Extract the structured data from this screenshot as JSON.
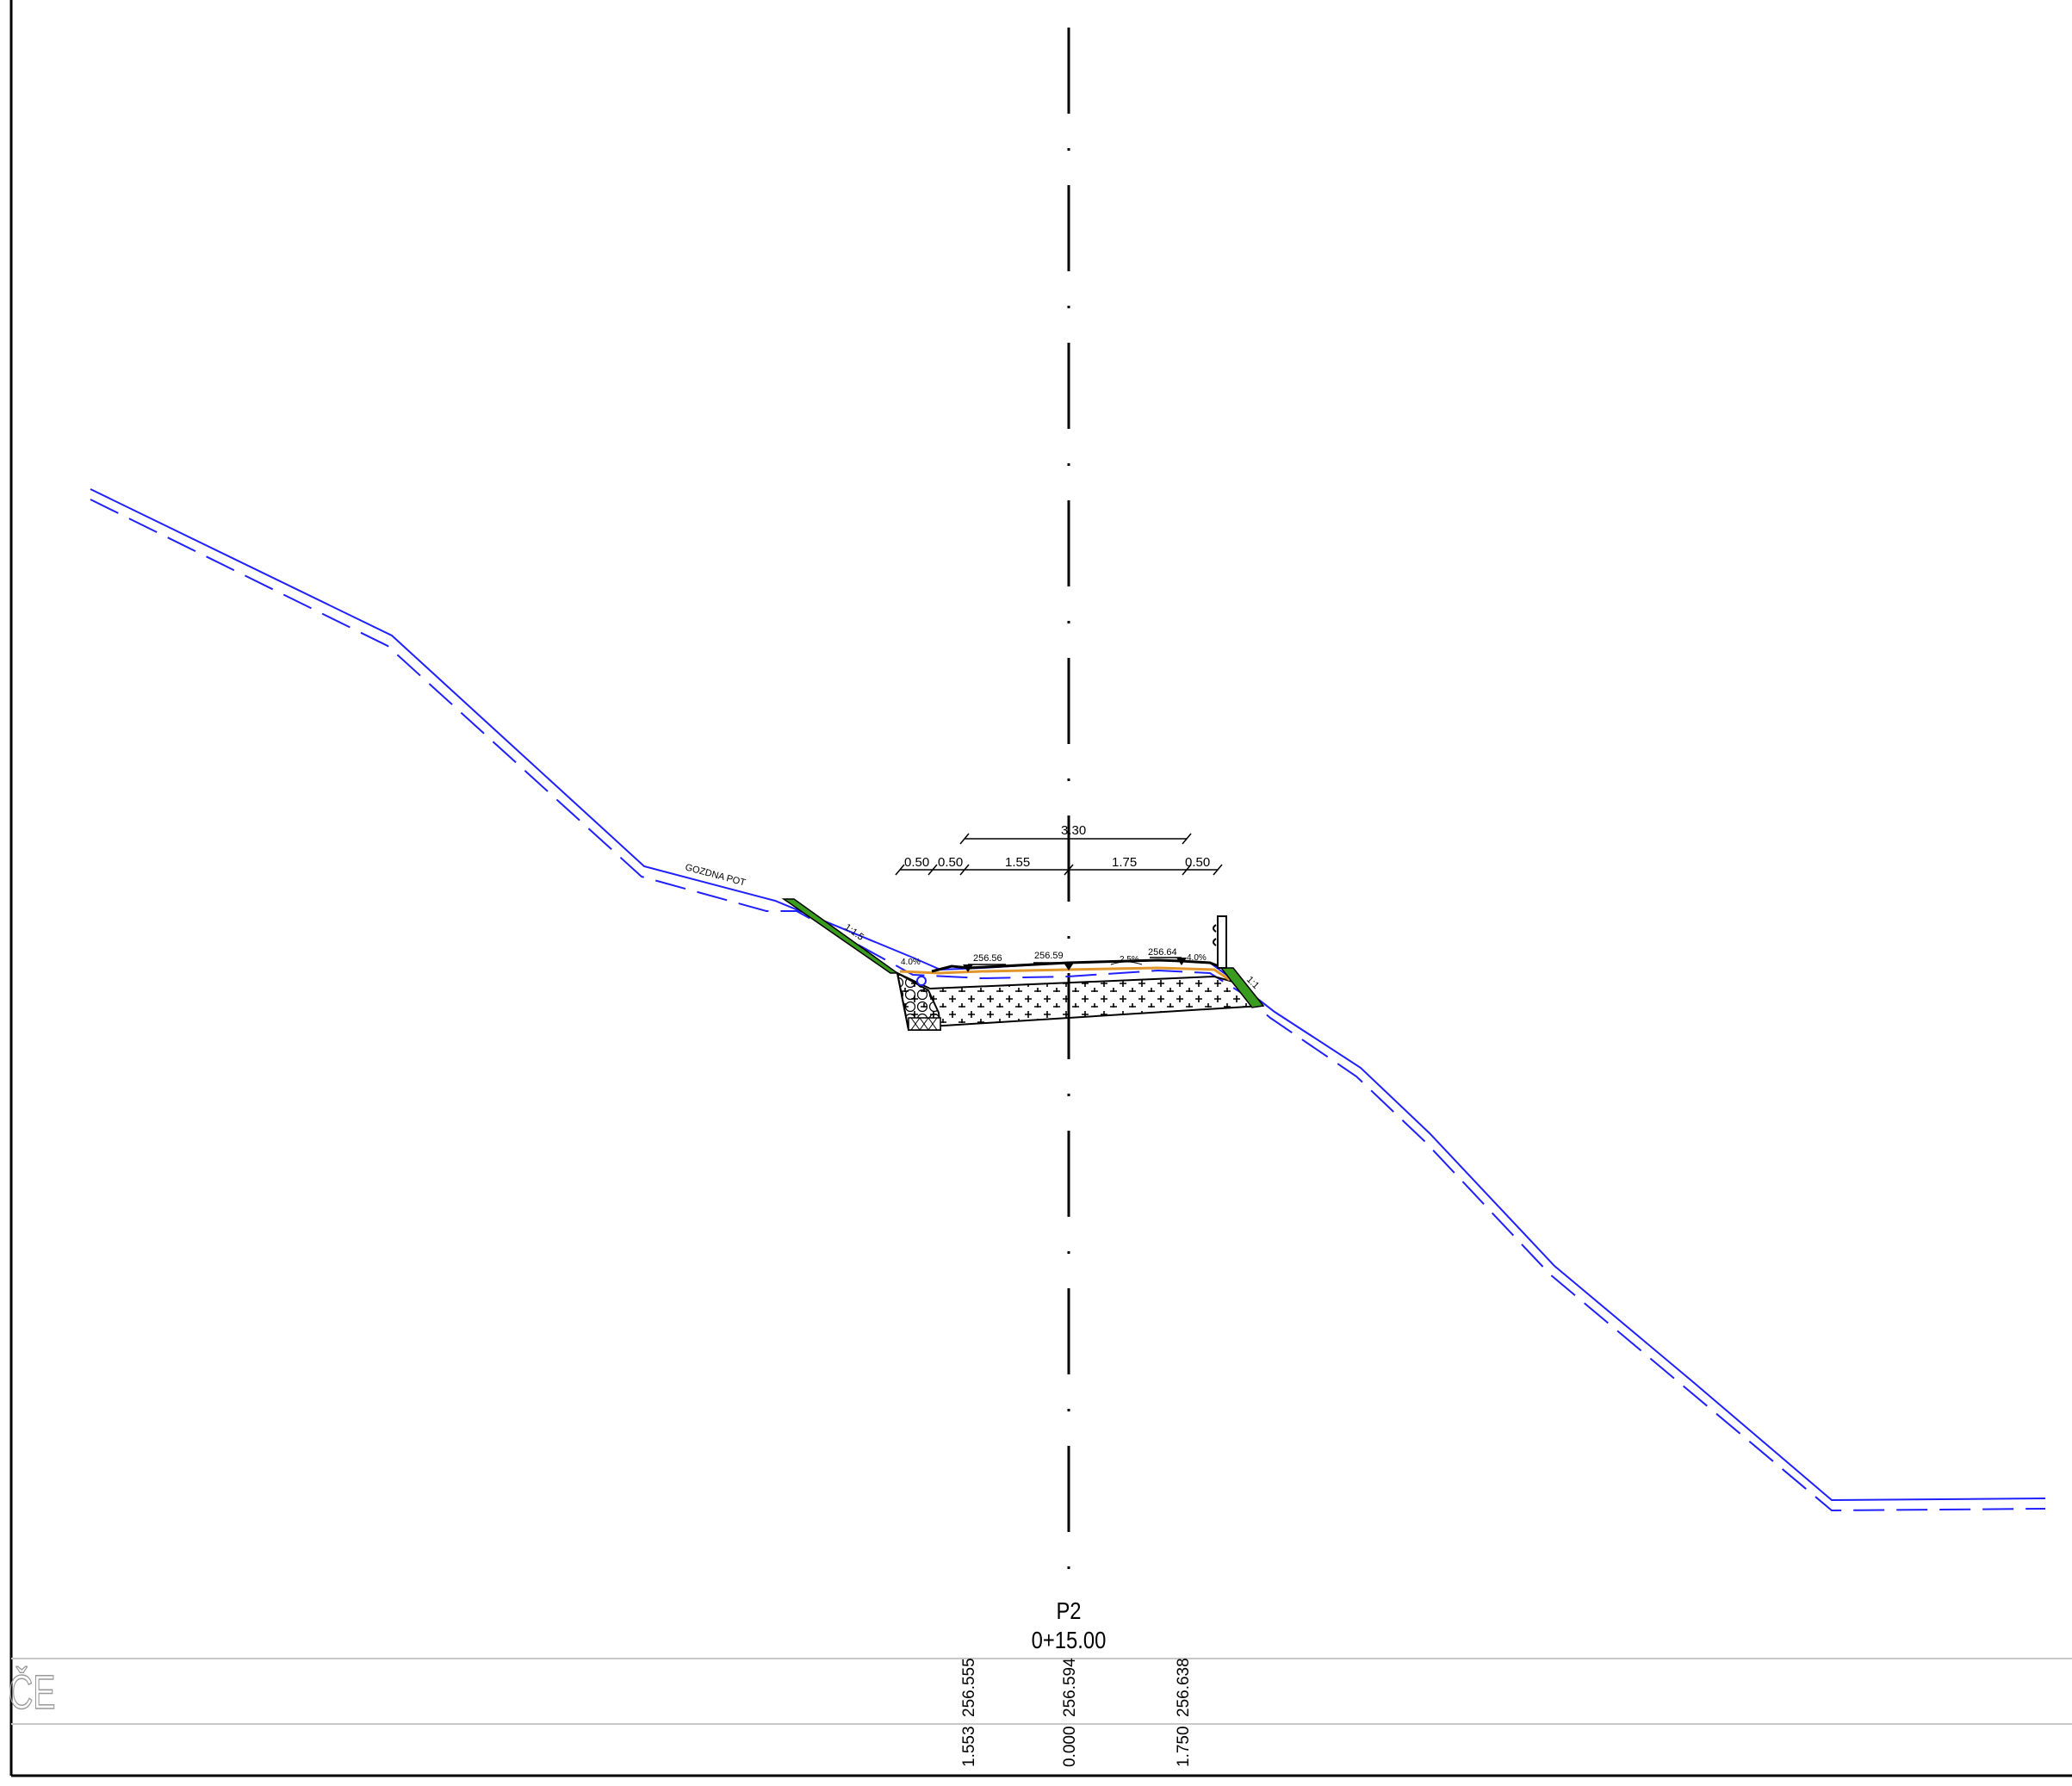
{
  "profile": {
    "id": "P2",
    "station": "0+15.00"
  },
  "dimensions": {
    "overall": "3.30",
    "segments": [
      "0.50",
      "0.50",
      "1.55",
      "1.75",
      "0.50"
    ]
  },
  "elevations": {
    "left_edge": "256.56",
    "axis": "256.59",
    "right_edge": "256.64"
  },
  "slopes": {
    "left": "4.0%",
    "right_lane": "2.5%",
    "right_shoulder": "4.0%",
    "left_embankment": "1:1.5",
    "right_embankment": "1:1"
  },
  "terrain_label": "GOZDNA POT",
  "band": {
    "row_label": "ČE",
    "points": [
      {
        "offset": "1.553",
        "elevation": "256.555"
      },
      {
        "offset": "0.000",
        "elevation": "256.594"
      },
      {
        "offset": "1.750",
        "elevation": "256.638"
      }
    ]
  },
  "colors": {
    "terrain": "#1f1fff",
    "axis": "#000000",
    "grass": "#3a9c1f",
    "subgrade": "#e0962a",
    "frame": "#000000",
    "band_lines": "#c8c8c8"
  }
}
